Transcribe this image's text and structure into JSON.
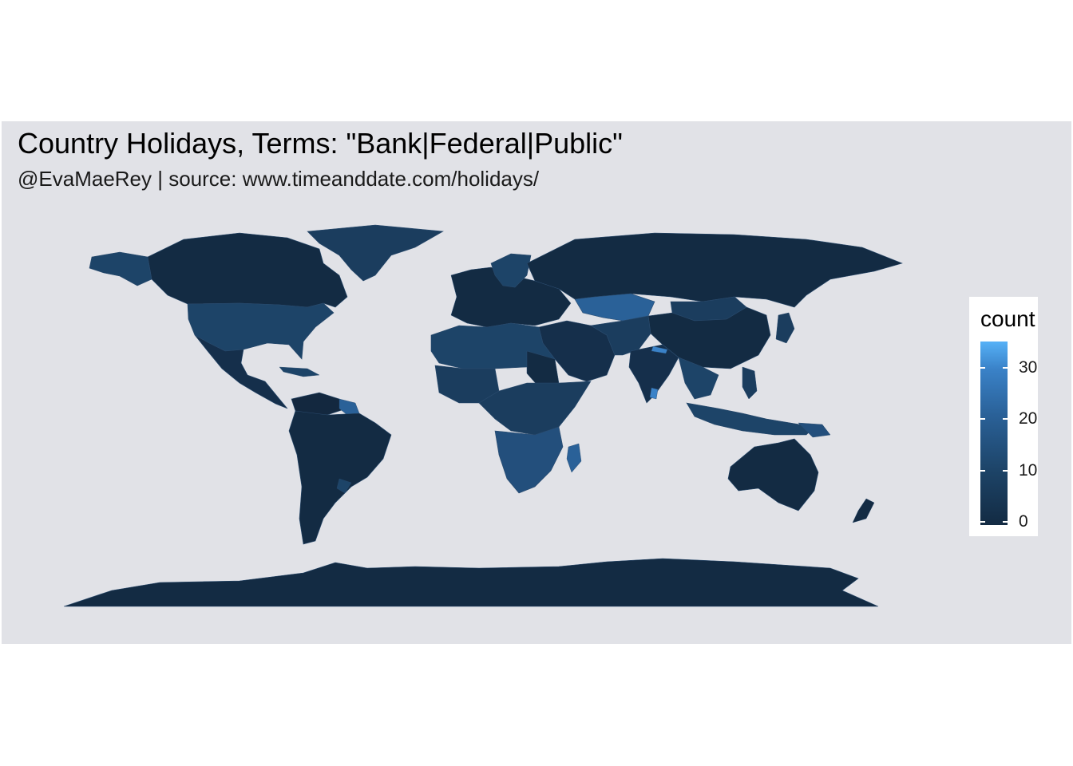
{
  "title": "Country Holidays, Terms: \"Bank|Federal|Public\"",
  "subtitle": "@EvaMaeRey | source: www.timeanddate.com/holidays/",
  "chart_data": {
    "type": "choropleth",
    "title": "Country Holidays, Terms: \"Bank|Federal|Public\"",
    "subtitle": "@EvaMaeRey | source: www.timeanddate.com/holidays/",
    "fill_variable": "count",
    "scale": {
      "low_color": "#132B43",
      "high_color": "#56B1F7",
      "range": [
        0,
        35
      ],
      "breaks": [
        0,
        10,
        20,
        30
      ]
    },
    "regions": [
      {
        "name": "Canada",
        "value": 2
      },
      {
        "name": "United States",
        "value": 13
      },
      {
        "name": "Mexico",
        "value": 4
      },
      {
        "name": "Brazil",
        "value": 2
      },
      {
        "name": "Argentina",
        "value": 2
      },
      {
        "name": "Russia",
        "value": 2
      },
      {
        "name": "China",
        "value": 2
      },
      {
        "name": "Mongolia",
        "value": 12
      },
      {
        "name": "Kazakhstan",
        "value": 22
      },
      {
        "name": "India",
        "value": 3
      },
      {
        "name": "Australia",
        "value": 2
      },
      {
        "name": "Greenland",
        "value": 12
      },
      {
        "name": "Algeria",
        "value": 14
      },
      {
        "name": "Libya",
        "value": 14
      },
      {
        "name": "Egypt",
        "value": 14
      },
      {
        "name": "Sudan",
        "value": 4
      },
      {
        "name": "Nigeria",
        "value": 14
      },
      {
        "name": "DR Congo",
        "value": 14
      },
      {
        "name": "Angola",
        "value": 18
      },
      {
        "name": "South Africa",
        "value": 20
      },
      {
        "name": "Madagascar",
        "value": 20
      },
      {
        "name": "Indonesia",
        "value": 16
      },
      {
        "name": "Papua New Guinea",
        "value": 20
      },
      {
        "name": "Philippines",
        "value": 10
      },
      {
        "name": "Japan",
        "value": 10
      },
      {
        "name": "Norway",
        "value": 13
      },
      {
        "name": "Sweden",
        "value": 13
      },
      {
        "name": "Saudi Arabia",
        "value": 3
      },
      {
        "name": "Iran",
        "value": 10
      },
      {
        "name": "Afghanistan",
        "value": 10
      },
      {
        "name": "Pakistan",
        "value": 14
      },
      {
        "name": "Sri Lanka",
        "value": 30
      },
      {
        "name": "Nepal",
        "value": 28
      },
      {
        "name": "Thailand",
        "value": 14
      },
      {
        "name": "Myanmar",
        "value": 3
      },
      {
        "name": "New Zealand",
        "value": 2
      },
      {
        "name": "Antarctica",
        "value": 0
      }
    ]
  },
  "legend": {
    "title": "count",
    "labels": [
      "30",
      "20",
      "10",
      "0"
    ]
  }
}
